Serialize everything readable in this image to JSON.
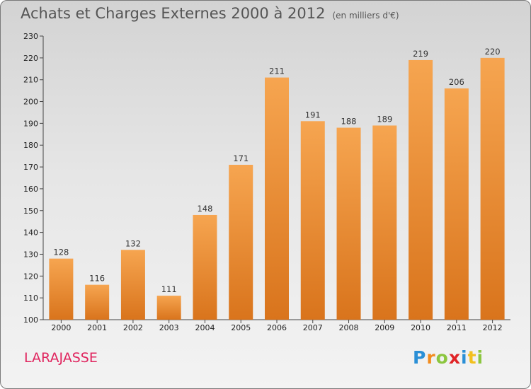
{
  "title": "Achats et Charges Externes 2000 à 2012",
  "unit": "(en milliers d'€)",
  "commune": "LARAJASSE",
  "brand": {
    "letters": [
      {
        "char": "P",
        "color": "#2a8fd6"
      },
      {
        "char": "r",
        "color": "#f28c1e"
      },
      {
        "char": "o",
        "color": "#8cc63f"
      },
      {
        "char": "x",
        "color": "#e02427"
      },
      {
        "char": "i",
        "color": "#2a8fd6"
      },
      {
        "char": "t",
        "color": "#f2c01e"
      },
      {
        "char": "i",
        "color": "#8cc63f"
      }
    ]
  },
  "colors": {
    "bar_top": "#f6a550",
    "bar_bottom": "#d9741c",
    "title": "#555555",
    "commune": "#e0245e"
  },
  "chart_data": {
    "type": "bar",
    "categories": [
      "2000",
      "2001",
      "2002",
      "2003",
      "2004",
      "2005",
      "2006",
      "2007",
      "2008",
      "2009",
      "2010",
      "2011",
      "2012"
    ],
    "values": [
      128,
      116,
      132,
      111,
      148,
      171,
      211,
      191,
      188,
      189,
      219,
      206,
      220
    ],
    "title": "Achats et Charges Externes 2000 à 2012",
    "xlabel": "",
    "ylabel": "",
    "ylim": [
      100,
      230
    ],
    "yticks": [
      100,
      110,
      120,
      130,
      140,
      150,
      160,
      170,
      180,
      190,
      200,
      210,
      220,
      230
    ],
    "grid": false,
    "data_labels": true
  }
}
